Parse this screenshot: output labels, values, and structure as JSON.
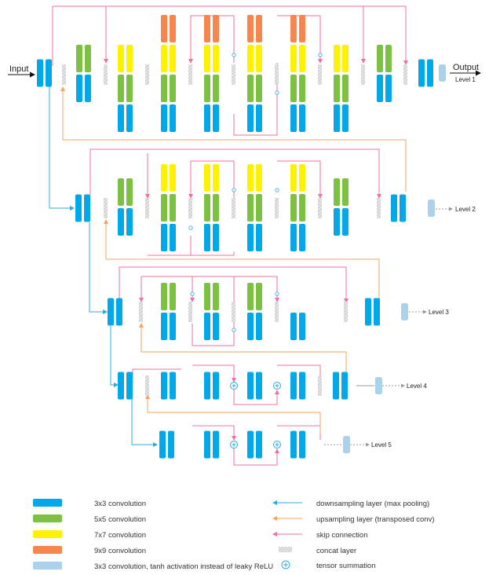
{
  "labels": {
    "input": "Input",
    "output": "Output",
    "level1": "Level 1",
    "level2": "Level 2",
    "level3": "Level 3",
    "level4": "Level 4",
    "level5": "Level 5"
  },
  "colors": {
    "conv3": "#00a8ea",
    "conv5": "#7dc142",
    "conv7": "#fff200",
    "conv9": "#f7864e",
    "tanh": "#a9d3ec",
    "down": "#29abe2",
    "up": "#f5a35f",
    "skip": "#ef6fa3",
    "concat": "#d9d9d9"
  },
  "legend": {
    "conv3": "3x3 convolution",
    "conv5": "5x5 convolution",
    "conv7": "7x7 convolution",
    "conv9": "9x9 convolution",
    "tanh": "3x3 convolution, tanh activation instead of leaky ReLU",
    "down": "downsampling layer (max pooling)",
    "up": "upsampling layer (transposed conv)",
    "skip": "skip connection",
    "concat": "concat layer",
    "sum": "tensor summation"
  }
}
